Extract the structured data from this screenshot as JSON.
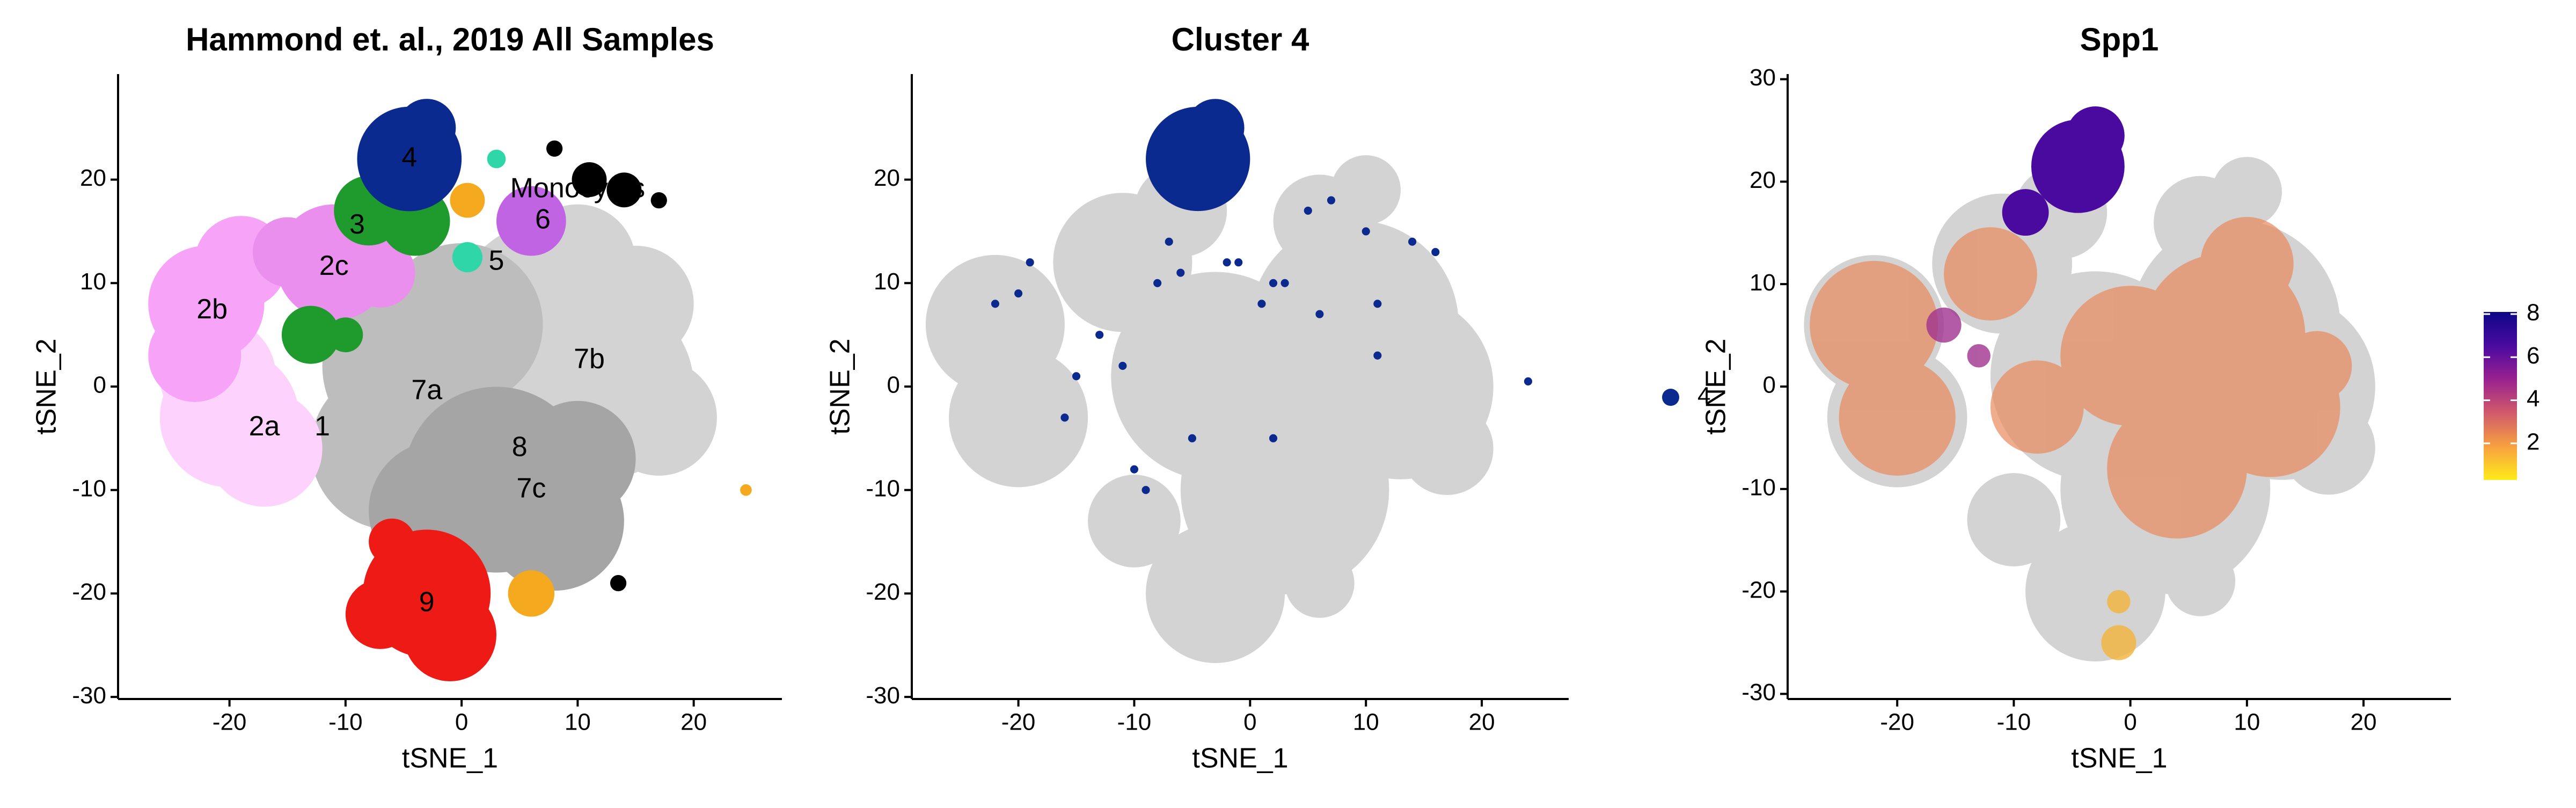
{
  "chart_data": [
    {
      "type": "scatter",
      "title": "Hammond et. al., 2019 All Samples",
      "xlabel": "tSNE_1",
      "ylabel": "tSNE_2",
      "xlim": [
        -29.6,
        27.6
      ],
      "ylim": [
        -30.2,
        30.2
      ],
      "xticks": [
        -20,
        -10,
        0,
        10,
        20
      ],
      "yticks": [
        -30,
        -20,
        -10,
        0,
        10,
        20
      ],
      "series": [
        {
          "color": "#d3d3d3",
          "x": [
            8,
            12,
            5,
            15,
            10,
            17
          ],
          "y": [
            6,
            0,
            -2,
            8,
            12,
            -3
          ],
          "r": [
            9,
            8,
            8,
            5,
            5,
            5
          ]
        },
        {
          "color": "#bdbdbd",
          "x": [
            -4,
            -6,
            0,
            -2
          ],
          "y": [
            2,
            -6,
            6,
            -4
          ],
          "r": [
            8,
            7,
            7,
            7
          ]
        },
        {
          "color": "#a5a5a5",
          "x": [
            3,
            8,
            -2,
            10
          ],
          "y": [
            -9,
            -13,
            -12,
            -7
          ],
          "r": [
            8,
            6,
            6,
            5
          ]
        },
        {
          "color": "#fdd3fd",
          "x": [
            -20,
            -17,
            -21
          ],
          "y": [
            -3,
            -6,
            1
          ],
          "r": [
            6,
            5,
            5
          ]
        },
        {
          "color": "#f7a3f7",
          "x": [
            -22,
            -23,
            -19
          ],
          "y": [
            8,
            3,
            12
          ],
          "r": [
            5,
            4,
            4
          ]
        },
        {
          "color": "#eb8fee",
          "x": [
            -11,
            -15,
            -7
          ],
          "y": [
            12,
            13,
            11
          ],
          "r": [
            5,
            3,
            3
          ]
        },
        {
          "color": "#1f9b2e",
          "x": [
            -8,
            -4,
            -13,
            -10
          ],
          "y": [
            17,
            16,
            5,
            5
          ],
          "r": [
            3,
            3,
            2.5,
            1.5
          ]
        },
        {
          "color": "#0b2a8f",
          "x": [
            -4.5,
            -3
          ],
          "y": [
            22,
            25
          ],
          "r": [
            4.5,
            2.5
          ]
        },
        {
          "color": "#c064e4",
          "x": [
            6
          ],
          "y": [
            16
          ],
          "r": [
            3
          ]
        },
        {
          "color": "#2fd7a8",
          "x": [
            0.5,
            3
          ],
          "y": [
            12.5,
            22
          ],
          "r": [
            1.3,
            0.8
          ]
        },
        {
          "color": "#f5a91e",
          "x": [
            0.5,
            6,
            24.5
          ],
          "y": [
            18,
            -20,
            -10
          ],
          "r": [
            1.5,
            2,
            0.5
          ]
        },
        {
          "color": "#ee1a16",
          "x": [
            -3,
            -1,
            -7,
            -6
          ],
          "y": [
            -20,
            -24,
            -22,
            -15
          ],
          "r": [
            5.5,
            4,
            3,
            2
          ]
        },
        {
          "color": "#000000",
          "x": [
            8,
            11,
            14,
            17,
            13.5
          ],
          "y": [
            23,
            20,
            19,
            18,
            -19
          ],
          "r": [
            0.7,
            1.5,
            1.5,
            0.7,
            0.7
          ]
        }
      ],
      "annotations": [
        {
          "text": "4",
          "x": -4.5,
          "y": 22
        },
        {
          "text": "3",
          "x": -9,
          "y": 15.5
        },
        {
          "text": "2c",
          "x": -11,
          "y": 11.5
        },
        {
          "text": "2b",
          "x": -21.5,
          "y": 7.3
        },
        {
          "text": "2a",
          "x": -17,
          "y": -4
        },
        {
          "text": "1",
          "x": -12,
          "y": -4
        },
        {
          "text": "5",
          "x": 3,
          "y": 12
        },
        {
          "text": "6",
          "x": 7,
          "y": 16
        },
        {
          "text": "Monocytes",
          "x": 10,
          "y": 19
        },
        {
          "text": "7a",
          "x": -3,
          "y": -0.5
        },
        {
          "text": "7b",
          "x": 11,
          "y": 2.5
        },
        {
          "text": "8",
          "x": 5,
          "y": -6
        },
        {
          "text": "7c",
          "x": 6,
          "y": -10
        },
        {
          "text": "9",
          "x": -3,
          "y": -21
        }
      ]
    },
    {
      "type": "scatter",
      "title": "Cluster 4",
      "xlabel": "tSNE_1",
      "ylabel": "tSNE_2",
      "xlim": [
        -29.2,
        27.5
      ],
      "ylim": [
        -30.2,
        30.2
      ],
      "xticks": [
        -20,
        -10,
        0,
        10,
        20
      ],
      "yticks": [
        -30,
        -20,
        -10,
        0,
        10,
        20
      ],
      "series": [
        {
          "color": "#d3d3d3",
          "x": [
            -22,
            -20,
            -11,
            -6,
            6,
            10,
            9,
            13,
            -3,
            3,
            -3,
            6,
            -10,
            17
          ],
          "y": [
            6,
            -3,
            12,
            17,
            16,
            19,
            6,
            0,
            1,
            -10,
            -20,
            -19,
            -13,
            -6
          ],
          "r": [
            6,
            6,
            6,
            4,
            4,
            3,
            9,
            8,
            9,
            9,
            6,
            3,
            4,
            4
          ]
        },
        {
          "name": "4",
          "color": "#0b2a8f",
          "x": [
            -4.5,
            -3,
            -19,
            -20,
            -22,
            -13,
            -11,
            -15,
            -10,
            -9,
            -7,
            -6,
            -2,
            2,
            5,
            7,
            10,
            14,
            16,
            11,
            24,
            -5,
            -1,
            1,
            3,
            6,
            -8,
            -16,
            11,
            2
          ],
          "y": [
            22,
            25,
            12,
            9,
            8,
            5,
            2,
            1,
            -8,
            -10,
            14,
            11,
            12,
            10,
            17,
            18,
            15,
            14,
            13,
            8,
            0.5,
            -5,
            12,
            8,
            10,
            7,
            10,
            -3,
            3,
            -5
          ],
          "r": [
            4.5,
            2.5,
            0.35,
            0.35,
            0.35,
            0.35,
            0.35,
            0.35,
            0.35,
            0.35,
            0.35,
            0.35,
            0.35,
            0.35,
            0.35,
            0.35,
            0.35,
            0.35,
            0.35,
            0.35,
            0.35,
            0.35,
            0.35,
            0.35,
            0.35,
            0.35,
            0.35,
            0.35,
            0.35,
            0.35
          ]
        }
      ]
    },
    {
      "type": "scatter",
      "title": "Spp1",
      "xlabel": "tSNE_1",
      "ylabel": "tSNE_2",
      "xlim": [
        -29.4,
        27.5
      ],
      "ylim": [
        -30.5,
        30.5
      ],
      "xticks": [
        -20,
        -10,
        0,
        10,
        20
      ],
      "yticks": [
        -30,
        -20,
        -10,
        0,
        10,
        20,
        30
      ],
      "series": [
        {
          "color": "#d3d3d3",
          "x": [
            -22,
            -20,
            -11,
            -6,
            6,
            10,
            9,
            13,
            -3,
            3,
            -3,
            6,
            -10,
            17
          ],
          "y": [
            6,
            -3,
            12,
            17,
            16,
            19,
            6,
            0,
            1,
            -10,
            -20,
            -19,
            -13,
            -6
          ],
          "r": [
            6,
            6,
            6,
            4,
            4,
            3,
            9,
            8,
            9,
            9,
            6,
            3,
            4,
            4
          ]
        },
        {
          "color": "#e98a5c",
          "opacity": 0.7,
          "x": [
            -22,
            -20,
            -12,
            8,
            12,
            0,
            4,
            -8,
            10,
            16
          ],
          "y": [
            6,
            -3,
            11,
            5,
            -2,
            3,
            -8,
            -2,
            12,
            2
          ],
          "r": [
            5.5,
            5,
            4,
            7,
            6,
            6,
            6,
            4,
            4,
            3
          ]
        },
        {
          "color": "#a0338f",
          "opacity": 0.8,
          "x": [
            -16,
            -13
          ],
          "y": [
            6,
            3
          ],
          "r": [
            1.5,
            1
          ]
        },
        {
          "color": "#4a0aa0",
          "x": [
            -4.5,
            -3,
            -9
          ],
          "y": [
            21.5,
            24.5,
            17
          ],
          "r": [
            4,
            2.5,
            2
          ]
        },
        {
          "color": "#f3b43a",
          "opacity": 0.8,
          "x": [
            -1,
            -1
          ],
          "y": [
            -25,
            -21
          ],
          "r": [
            1.5,
            1
          ]
        }
      ],
      "colorbar": {
        "lim": [
          0.3,
          8.1
        ],
        "ticks": [
          2,
          4,
          6,
          8
        ],
        "colors": [
          "#ffeb1a",
          "#f7a040",
          "#d05a6b",
          "#9a2190",
          "#4a0aa0",
          "#0d0887"
        ]
      }
    }
  ]
}
